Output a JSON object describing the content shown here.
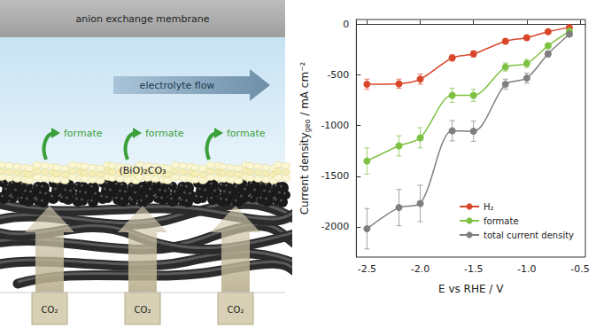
{
  "chart_data": {
    "type": "line",
    "xlabel": "E vs RHE / V",
    "ylabel": [
      "Current density",
      "geo",
      " / mA cm⁻²"
    ],
    "xlim": [
      -2.6,
      -0.45
    ],
    "xticks": [
      -2.5,
      {
        "value": -2,
        "label": "-2.0"
      },
      -1.5,
      {
        "value": -1,
        "label": "-1.0"
      },
      -0.5
    ],
    "ylim": [
      -2300,
      50
    ],
    "yticks": [
      -2000,
      -1500,
      -1000,
      -500,
      0
    ],
    "grid": false,
    "legend": "lower right",
    "marker": "circle",
    "x": [
      -2.5,
      -2.2,
      -2.0,
      -1.7,
      -1.5,
      -1.2,
      -1.0,
      -0.8,
      -0.6
    ],
    "series": [
      {
        "name": "H₂",
        "color": "#d9472b",
        "values": [
          -590,
          -585,
          -540,
          -330,
          -290,
          -165,
          -130,
          -70,
          -30
        ],
        "errors": [
          50,
          45,
          50,
          30,
          30,
          20,
          20,
          15,
          10
        ]
      },
      {
        "name": "formate",
        "color": "#7dc242",
        "values": [
          -1350,
          -1200,
          -1120,
          -700,
          -700,
          -420,
          -385,
          -210,
          -65
        ],
        "errors": [
          130,
          100,
          100,
          70,
          60,
          40,
          40,
          20,
          10
        ]
      },
      {
        "name": "total current density",
        "color": "#7f7f7f",
        "values": [
          -2020,
          -1810,
          -1770,
          -1050,
          -1055,
          -590,
          -530,
          -290,
          -95
        ],
        "errors": [
          200,
          180,
          180,
          100,
          100,
          50,
          50,
          30,
          20
        ]
      }
    ]
  },
  "diagram": {
    "membrane": "anion exchange membrane",
    "flow": "electrolyte flow",
    "product_labels": [
      "formate",
      "formate",
      "formate"
    ],
    "catalyst": "(BiO)₂CO₃",
    "gas_labels": [
      "CO₂",
      "CO₂",
      "CO₂"
    ]
  }
}
